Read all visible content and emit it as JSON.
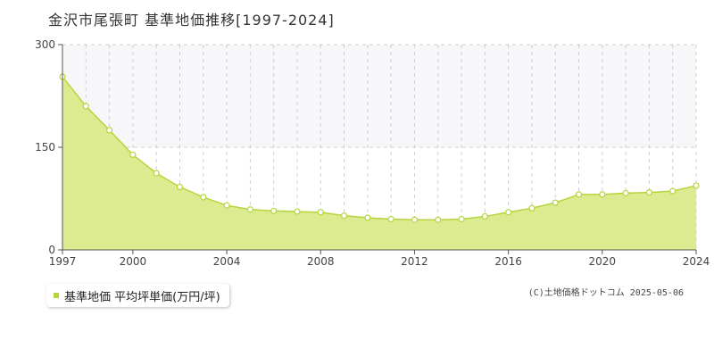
{
  "title": "金沢市尾張町 基準地価推移[1997-2024]",
  "legend_label": "基準地価 平均坪単価(万円/坪)",
  "credit": "(C)土地価格ドットコム 2025-05-06",
  "colors": {
    "fill": "#dceb8f",
    "line": "#b4d53c",
    "marker": "#b4d53c",
    "band": "#f7f6f8",
    "grid": "#d0d0d0"
  },
  "chart_data": {
    "type": "area",
    "title": "金沢市尾張町 基準地価推移[1997-2024]",
    "xlabel": "",
    "ylabel": "",
    "x": [
      1997,
      1998,
      1999,
      2000,
      2001,
      2002,
      2003,
      2004,
      2005,
      2006,
      2007,
      2008,
      2009,
      2010,
      2011,
      2012,
      2013,
      2014,
      2015,
      2016,
      2017,
      2018,
      2019,
      2020,
      2021,
      2022,
      2023,
      2024
    ],
    "series": [
      {
        "name": "基準地価 平均坪単価(万円/坪)",
        "values": [
          253,
          210,
          175,
          139,
          112,
          92,
          77,
          65,
          59,
          57,
          56,
          55,
          50,
          47,
          45,
          44,
          44,
          45,
          49,
          55,
          61,
          69,
          81,
          81,
          83,
          84,
          86,
          94
        ]
      }
    ],
    "xlim": [
      1997,
      2024
    ],
    "ylim": [
      0,
      300
    ],
    "x_ticks": [
      "1997",
      "2000",
      "2004",
      "2008",
      "2012",
      "2016",
      "2020",
      "2024"
    ],
    "y_ticks": [
      "0",
      "150",
      "300"
    ],
    "grid": true,
    "legend_position": "bottom-left"
  }
}
